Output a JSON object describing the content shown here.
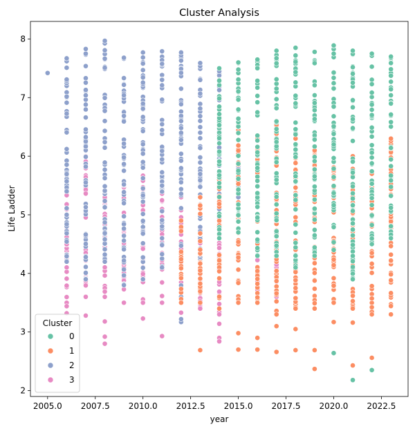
{
  "chart_data": {
    "type": "scatter",
    "title": "Cluster Analysis",
    "xlabel": "year",
    "ylabel": "Life Ladder",
    "xlim": [
      2004.1,
      2023.9
    ],
    "ylim": [
      1.9,
      8.3
    ],
    "xticks": [
      2005.0,
      2007.5,
      2010.0,
      2012.5,
      2015.0,
      2017.5,
      2020.0,
      2022.5
    ],
    "xtick_labels": [
      "2005.0",
      "2007.5",
      "2010.0",
      "2012.5",
      "2015.0",
      "2017.5",
      "2020.0",
      "2022.5"
    ],
    "yticks": [
      2,
      3,
      4,
      5,
      6,
      7,
      8
    ],
    "ytick_labels": [
      "2",
      "3",
      "4",
      "5",
      "6",
      "7",
      "8"
    ],
    "legend": {
      "title": "Cluster",
      "placement": "lower-left"
    },
    "series": [
      {
        "name": "0",
        "color": "#66c2a5",
        "ranges": [
          {
            "year": 2014,
            "min": 4.6,
            "max": 7.5
          },
          {
            "year": 2015,
            "min": 4.7,
            "max": 7.6
          },
          {
            "year": 2016,
            "min": 4.3,
            "max": 7.65
          },
          {
            "year": 2017,
            "min": 4.3,
            "max": 7.8
          },
          {
            "year": 2018,
            "min": 4.1,
            "max": 7.85
          },
          {
            "year": 2019,
            "min": 4.3,
            "max": 7.78
          },
          {
            "year": 2020,
            "min": 4.4,
            "max": 7.89
          },
          {
            "year": 2021,
            "min": 3.9,
            "max": 7.8
          },
          {
            "year": 2022,
            "min": 4.5,
            "max": 7.75
          },
          {
            "year": 2023,
            "min": 4.6,
            "max": 7.7
          }
        ],
        "extra_points": [
          [
            2020,
            2.64
          ],
          [
            2021,
            2.18
          ],
          [
            2022,
            2.35
          ]
        ]
      },
      {
        "name": "1",
        "color": "#fc8d62",
        "ranges": [
          {
            "year": 2012,
            "min": 3.5,
            "max": 4.9
          },
          {
            "year": 2013,
            "min": 3.5,
            "max": 5.3
          },
          {
            "year": 2014,
            "min": 3.4,
            "max": 5.6
          },
          {
            "year": 2015,
            "min": 3.5,
            "max": 6.5
          },
          {
            "year": 2016,
            "min": 3.5,
            "max": 6.3
          },
          {
            "year": 2017,
            "min": 3.3,
            "max": 6.6
          },
          {
            "year": 2018,
            "min": 3.4,
            "max": 6.3
          },
          {
            "year": 2019,
            "min": 3.4,
            "max": 6.1
          },
          {
            "year": 2020,
            "min": 3.5,
            "max": 5.9
          },
          {
            "year": 2021,
            "min": 3.4,
            "max": 6.0
          },
          {
            "year": 2022,
            "min": 3.3,
            "max": 5.7
          },
          {
            "year": 2023,
            "min": 3.3,
            "max": 6.3
          }
        ],
        "extra_points": [
          [
            2013,
            2.69
          ],
          [
            2015,
            2.98
          ],
          [
            2016,
            2.9
          ],
          [
            2016,
            2.7
          ],
          [
            2017,
            2.66
          ],
          [
            2018,
            2.69
          ],
          [
            2019,
            2.69
          ],
          [
            2019,
            2.37
          ],
          [
            2020,
            3.17
          ],
          [
            2020,
            3.79
          ],
          [
            2021,
            2.43
          ],
          [
            2021,
            3.16
          ],
          [
            2022,
            2.56
          ],
          [
            2015,
            2.7
          ],
          [
            2017,
            3.1
          ],
          [
            2018,
            3.05
          ]
        ]
      },
      {
        "name": "2",
        "color": "#8da0cb",
        "ranges": [
          {
            "year": 2006,
            "min": 4.2,
            "max": 7.67
          },
          {
            "year": 2007,
            "min": 3.9,
            "max": 7.83
          },
          {
            "year": 2008,
            "min": 4.2,
            "max": 7.97
          },
          {
            "year": 2009,
            "min": 3.8,
            "max": 7.68
          },
          {
            "year": 2010,
            "min": 3.9,
            "max": 7.77
          },
          {
            "year": 2011,
            "min": 4.1,
            "max": 7.79
          },
          {
            "year": 2012,
            "min": 3.6,
            "max": 7.77
          },
          {
            "year": 2013,
            "min": 4.2,
            "max": 7.59
          },
          {
            "year": 2014,
            "min": 5.0,
            "max": 7.45
          },
          {
            "year": 2015,
            "min": 5.1,
            "max": 6.1
          }
        ],
        "extra_points": [
          [
            2005,
            7.42
          ],
          [
            2012,
            3.17
          ],
          [
            2012,
            3.22
          ]
        ]
      },
      {
        "name": "3",
        "color": "#e78ac3",
        "ranges": [
          {
            "year": 2006,
            "min": 3.5,
            "max": 5.5
          },
          {
            "year": 2007,
            "min": 3.6,
            "max": 6.0
          },
          {
            "year": 2008,
            "min": 3.6,
            "max": 5.3
          },
          {
            "year": 2009,
            "min": 3.5,
            "max": 5.5
          },
          {
            "year": 2010,
            "min": 3.5,
            "max": 5.9
          },
          {
            "year": 2011,
            "min": 3.5,
            "max": 5.5
          },
          {
            "year": 2012,
            "min": 3.5,
            "max": 5.3
          },
          {
            "year": 2013,
            "min": 3.4,
            "max": 5.0
          },
          {
            "year": 2014,
            "min": 3.3,
            "max": 5.2
          },
          {
            "year": 2016,
            "min": 3.5,
            "max": 4.5
          },
          {
            "year": 2017,
            "min": 3.6,
            "max": 4.3
          }
        ],
        "extra_points": [
          [
            2006,
            3.32
          ],
          [
            2006,
            3.44
          ],
          [
            2007,
            3.28
          ],
          [
            2008,
            3.18
          ],
          [
            2008,
            2.8
          ],
          [
            2008,
            2.92
          ],
          [
            2010,
            3.23
          ],
          [
            2011,
            2.93
          ],
          [
            2012,
            3.33
          ],
          [
            2014,
            3.14
          ],
          [
            2014,
            2.9
          ],
          [
            2014,
            2.84
          ],
          [
            2015,
            2.7
          ]
        ]
      }
    ]
  }
}
